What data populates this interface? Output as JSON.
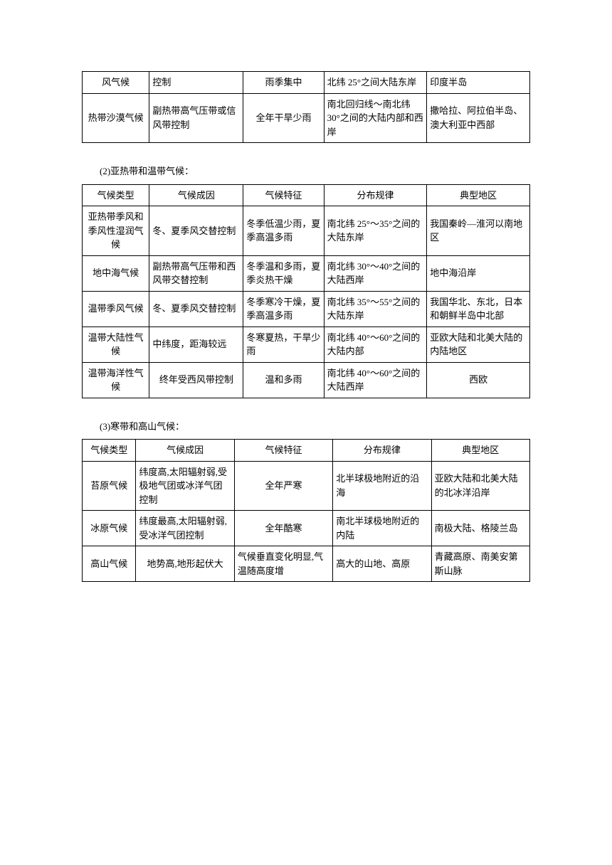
{
  "table1": {
    "rows": [
      {
        "type": "风气候",
        "cause": "控制",
        "feature": "雨季集中",
        "dist": "北纬 25°之间大陆东岸",
        "region": "印度半岛"
      },
      {
        "type": "热带沙漠气候",
        "cause": "副热带高气压带或信风带控制",
        "feature": "全年干旱少雨",
        "dist": "南北回归线～南北纬 30°之间的大陆内部和西岸",
        "region": "撒哈拉、阿拉伯半岛、澳大利亚中西部"
      }
    ]
  },
  "section2": {
    "title": "(2)亚热带和温带气候：",
    "headers": {
      "type": "气候类型",
      "cause": "气候成因",
      "feature": "气候特征",
      "dist": "分布规律",
      "region": "典型地区"
    },
    "rows": [
      {
        "type": "亚热带季风和季风性湿润气候",
        "cause": "冬、夏季风交替控制",
        "feature": "冬季低温少雨，夏季高温多雨",
        "dist": "南北纬 25°～35°之间的大陆东岸",
        "region": "我国秦岭—淮河以南地区"
      },
      {
        "type": "地中海气候",
        "cause": "副热带高气压带和西风带交替控制",
        "feature": "冬季温和多雨，夏季炎热干燥",
        "dist": "南北纬 30°～40°之间的大陆西岸",
        "region": "地中海沿岸"
      },
      {
        "type": "温带季风气候",
        "cause": "冬、夏季风交替控制",
        "feature": "冬季寒冷干燥，夏季高温多雨",
        "dist": "南北纬 35°～55°之间的大陆东岸",
        "region": "我国华北、东北，日本和朝鲜半岛中北部"
      },
      {
        "type": "温带大陆性气候",
        "cause": "中纬度，距海较远",
        "feature": "冬寒夏热，干旱少雨",
        "dist": "南北纬 40°～60°之间的大陆内部",
        "region": "亚欧大陆和北美大陆的内陆地区"
      },
      {
        "type": "温带海洋性气候",
        "cause": "终年受西风带控制",
        "feature": "温和多雨",
        "dist": "南北纬 40°～60°之间的大陆西岸",
        "region": "西欧"
      }
    ]
  },
  "section3": {
    "title": "(3)寒带和高山气候：",
    "headers": {
      "type": "气候类型",
      "cause": "气候成因",
      "feature": "气候特征",
      "dist": "分布规律",
      "region": "典型地区"
    },
    "rows": [
      {
        "type": "苔原气候",
        "cause": "纬度高,太阳辐射弱,受极地气团或冰洋气团控制",
        "feature": "全年严寒",
        "dist": "北半球极地附近的沿海",
        "region": "亚欧大陆和北美大陆的北冰洋沿岸"
      },
      {
        "type": "冰原气候",
        "cause": "纬度最高,太阳辐射弱,受冰洋气团控制",
        "feature": "全年酷寒",
        "dist": "南北半球极地附近的内陆",
        "region": "南极大陆、格陵兰岛"
      },
      {
        "type": "高山气候",
        "cause": "地势高,地形起伏大",
        "feature": "气候垂直变化明显,气温随高度增",
        "dist": "高大的山地、高原",
        "region": "青藏高原、南美安第斯山脉"
      }
    ]
  }
}
